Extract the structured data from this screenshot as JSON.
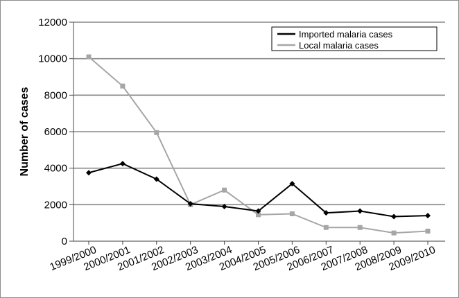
{
  "chart_data": {
    "type": "line",
    "categories": [
      "1999/2000",
      "2000/2001",
      "2001/2002",
      "2002/2003",
      "2003/2004",
      "2004/2005",
      "2005/2006",
      "2006/2007",
      "2007/2008",
      "2008/2009",
      "2009/2010"
    ],
    "series": [
      {
        "name": "Imported malaria cases",
        "color": "#000000",
        "values": [
          3750,
          4250,
          3400,
          2050,
          1900,
          1650,
          3150,
          1550,
          1650,
          1350,
          1400
        ]
      },
      {
        "name": "Local malaria cases",
        "color": "#a6a6a6",
        "values": [
          10100,
          8500,
          5950,
          2000,
          2800,
          1450,
          1500,
          750,
          750,
          450,
          550
        ]
      }
    ],
    "title": "",
    "xlabel": "",
    "ylabel": "Number of cases",
    "ylim": [
      0,
      12000
    ],
    "yticks": [
      0,
      2000,
      4000,
      6000,
      8000,
      10000,
      12000
    ],
    "grid": "horizontal",
    "legend_position": "top-right"
  }
}
